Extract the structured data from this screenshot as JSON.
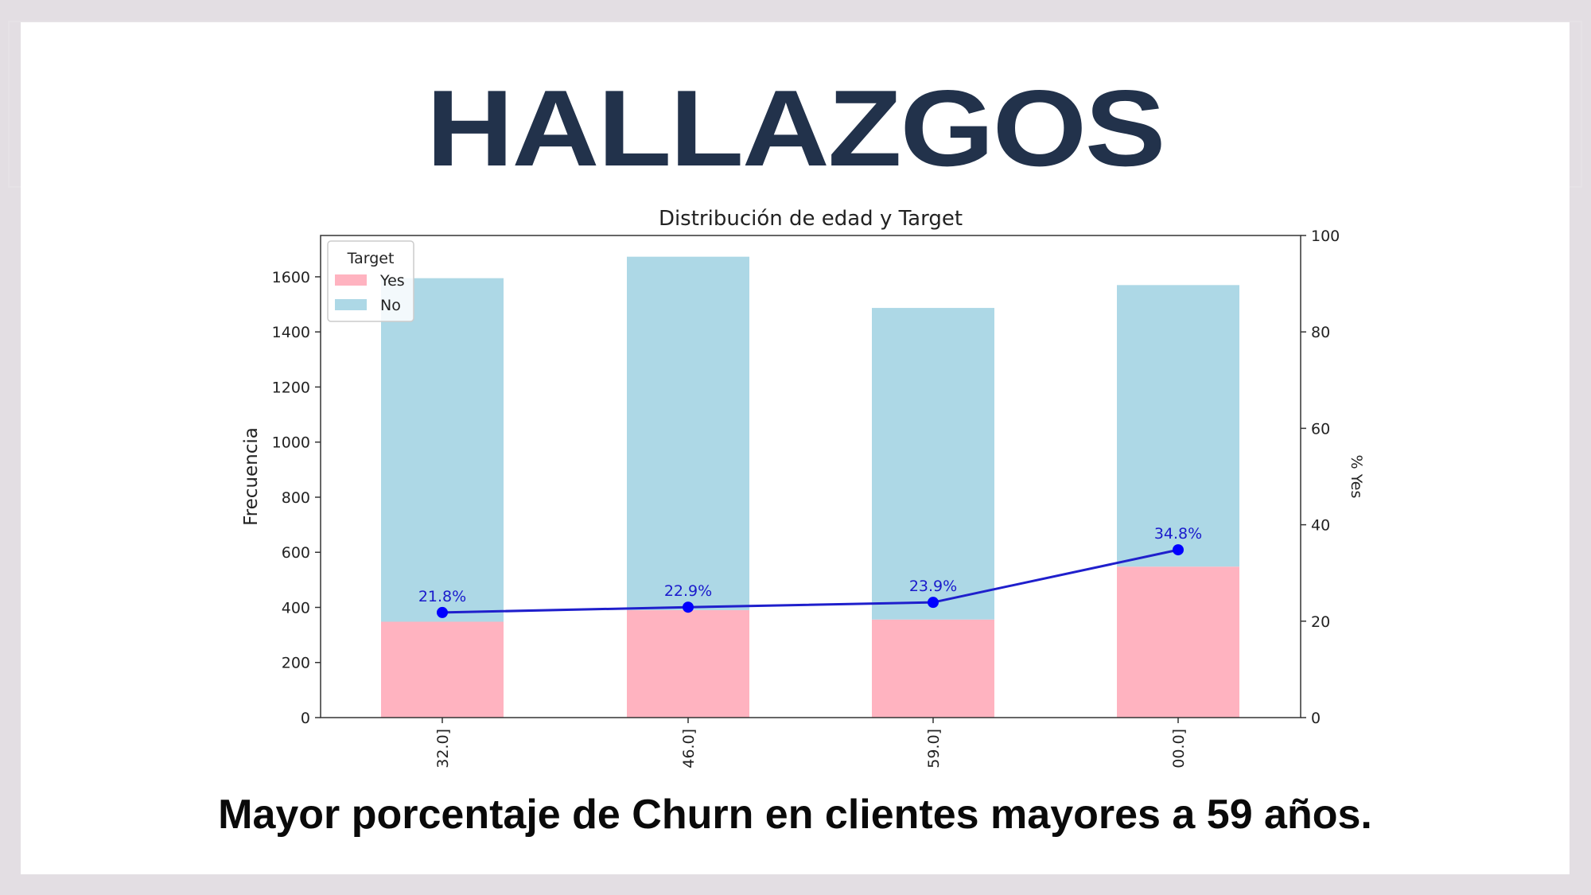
{
  "slide": {
    "title": "HALLAZGOS",
    "caption": "Mayor porcentaje de Churn en clientes mayores a 59 años."
  },
  "colors": {
    "title": "#22324b",
    "yes_bar": "#ffb3c0",
    "no_bar": "#add8e6",
    "line": "#1f1fcc",
    "marker": "#0000ff"
  },
  "chart_data": {
    "type": "bar",
    "stacked": true,
    "title": "Distribución de edad y Target",
    "ylabel": "Frecuencia",
    "y2label": "% Yes",
    "categories": [
      "32.0]",
      "46.0]",
      "59.0]",
      "00.0]"
    ],
    "ylim": [
      0,
      1750
    ],
    "yticks": [
      0,
      200,
      400,
      600,
      800,
      1000,
      1200,
      1400,
      1600
    ],
    "y2lim": [
      0,
      100
    ],
    "y2ticks": [
      0,
      20,
      40,
      60,
      80,
      100
    ],
    "legend": {
      "title": "Target",
      "position": "top-left"
    },
    "series": [
      {
        "name": "Yes",
        "values": [
          348,
          390,
          356,
          548
        ],
        "color": "#ffb3c0"
      },
      {
        "name": "No",
        "values": [
          1247,
          1283,
          1131,
          1022
        ],
        "color": "#add8e6"
      }
    ],
    "line_series": {
      "name": "% Yes",
      "axis": "right",
      "values": [
        21.8,
        22.9,
        23.9,
        34.8
      ],
      "labels": [
        "21.8%",
        "22.9%",
        "23.9%",
        "34.8%"
      ],
      "color": "#1f1fcc"
    }
  }
}
